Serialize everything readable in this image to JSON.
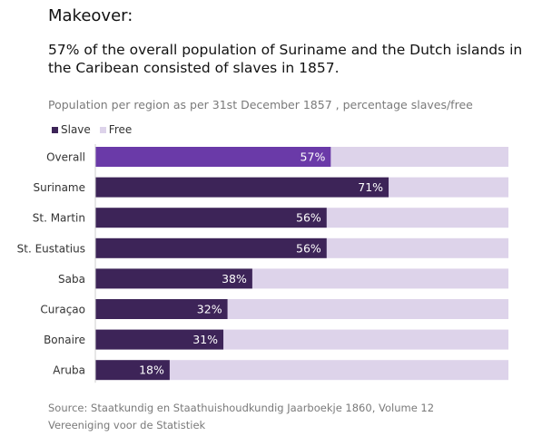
{
  "eyebrow": "Makeover:",
  "headline": "57% of the overall population of Suriname and the Dutch islands in the Caribean consisted of slaves in 1857.",
  "colors": {
    "slave": "#3d2458",
    "overall": "#6a3aa8",
    "free": "#ddd3ea"
  },
  "chart_data": {
    "type": "bar",
    "orientation": "horizontal",
    "stacked": true,
    "title": "Population per region as per 31st December 1857 , percentage slaves/free",
    "categories": [
      "Overall",
      "Suriname",
      "St. Martin",
      "St. Eustatius",
      "Saba",
      "Curaçao",
      "Bonaire",
      "Aruba"
    ],
    "series": [
      {
        "name": "Slave",
        "values": [
          57,
          71,
          56,
          56,
          38,
          32,
          31,
          18
        ]
      },
      {
        "name": "Free",
        "values": [
          43,
          29,
          44,
          44,
          62,
          68,
          69,
          82
        ]
      }
    ],
    "data_labels": [
      "57%",
      "71%",
      "56%",
      "56%",
      "38%",
      "32%",
      "31%",
      "18%"
    ],
    "xlim": [
      0,
      100
    ],
    "legend": "top-left",
    "grid": false
  },
  "source": {
    "line1": "Source: Staatkundig en Staathuishoudkundig Jaarboekje 1860, Volume 12",
    "line2": "Vereeniging voor de Statistiek"
  }
}
